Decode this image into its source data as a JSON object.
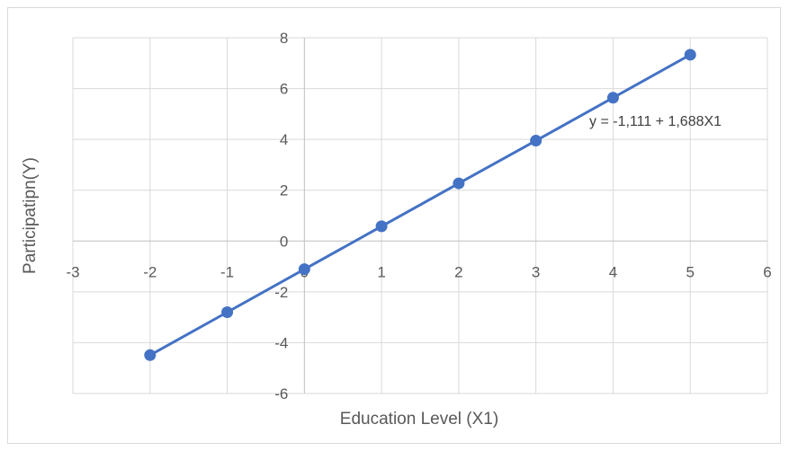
{
  "chart_data": {
    "type": "line",
    "title": "",
    "xlabel": "Education Level (X1)",
    "ylabel": "Participatipn(Y)",
    "xlim": [
      -3,
      6
    ],
    "ylim": [
      -6,
      8
    ],
    "xticks": [
      "-3",
      "-2",
      "-1",
      "0",
      "1",
      "2",
      "3",
      "4",
      "5",
      "6"
    ],
    "yticks": [
      "8",
      "6",
      "4",
      "2",
      "0",
      "-2",
      "-4",
      "-6"
    ],
    "grid": true,
    "series": [
      {
        "color": "#4472c4",
        "x": [
          -2,
          -1,
          0,
          1,
          2,
          3,
          4,
          5
        ],
        "y": [
          -4.49,
          -2.8,
          -1.11,
          0.58,
          2.27,
          3.95,
          5.64,
          7.33
        ]
      }
    ],
    "annotations": [
      {
        "text": "y = -1,111 + 1,688X1"
      }
    ]
  }
}
